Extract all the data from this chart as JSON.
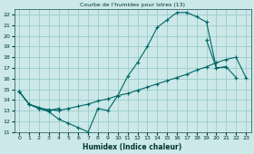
{
  "bg_color": "#cce8e8",
  "grid_color": "#99cccc",
  "line_color": "#006666",
  "title": "Courbe de l'humidex pour Istres (13)",
  "xlabel": "Humidex (Indice chaleur)",
  "xlim": [
    -0.5,
    23.5
  ],
  "ylim": [
    11,
    22.5
  ],
  "xticks": [
    0,
    1,
    2,
    3,
    4,
    5,
    6,
    7,
    8,
    9,
    10,
    11,
    12,
    13,
    14,
    15,
    16,
    17,
    18,
    19,
    20,
    21,
    22,
    23
  ],
  "yticks": [
    11,
    12,
    13,
    14,
    15,
    16,
    17,
    18,
    19,
    20,
    21,
    22
  ],
  "curve1_x": [
    0,
    1,
    2,
    3,
    4,
    5,
    6,
    7,
    8,
    9,
    10,
    11,
    12,
    13,
    14,
    15,
    16,
    17,
    18,
    19,
    20,
    21
  ],
  "curve1_y": [
    14.8,
    13.6,
    13.2,
    12.9,
    12.2,
    11.8,
    11.4,
    11.0,
    13.2,
    13.0,
    14.4,
    16.2,
    17.5,
    19.0,
    20.8,
    21.5,
    22.2,
    22.2,
    21.8,
    21.3,
    17.0,
    17.1
  ],
  "curve2_x": [
    0,
    1,
    2,
    3,
    4,
    5,
    6,
    7,
    8,
    9,
    10,
    11,
    12,
    13,
    14,
    15,
    16,
    17,
    18,
    19,
    20,
    21,
    22,
    23
  ],
  "curve2_y": [
    14.8,
    13.6,
    13.2,
    13.1,
    13.0,
    13.2,
    13.4,
    13.6,
    13.9,
    14.1,
    14.4,
    14.6,
    14.9,
    15.2,
    15.5,
    15.8,
    16.1,
    16.4,
    16.8,
    17.1,
    17.5,
    17.8,
    18.0,
    16.1
  ],
  "curve3_x": [
    0,
    1,
    2,
    3,
    4,
    19,
    20,
    21,
    22
  ],
  "curve3_y": [
    14.8,
    13.6,
    13.3,
    13.0,
    13.2,
    19.6,
    17.0,
    17.1,
    16.1
  ]
}
